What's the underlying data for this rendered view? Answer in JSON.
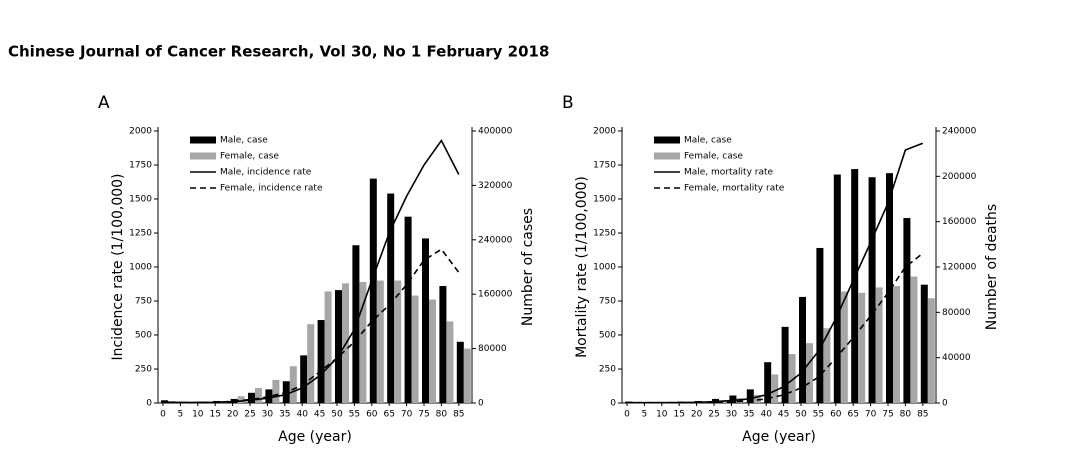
{
  "header": {
    "title": "Chinese Journal of Cancer Research, Vol 30, No 1 February 2018"
  },
  "chart_data": [
    {
      "type": "bar",
      "panel": "A",
      "xlabel": "Age (year)",
      "ylabel": "Incidence rate (1/100,000)",
      "y2label": "Number of cases",
      "categories": [
        "0",
        "5",
        "10",
        "15",
        "20",
        "25",
        "30",
        "35",
        "40",
        "45",
        "50",
        "55",
        "60",
        "65",
        "70",
        "75",
        "80",
        "85"
      ],
      "ylim": [
        0,
        2000
      ],
      "yticks": [
        0,
        250,
        500,
        750,
        1000,
        1250,
        1500,
        1750,
        2000
      ],
      "y2lim": [
        0,
        400000
      ],
      "y2ticks": [
        0,
        80000,
        160000,
        240000,
        320000,
        400000
      ],
      "series": [
        {
          "name": "Male, case",
          "type": "bar",
          "axis": "y2",
          "color": "#000000",
          "values": [
            4000,
            2000,
            2000,
            3000,
            6000,
            15000,
            20000,
            32000,
            70000,
            122000,
            166000,
            232000,
            330000,
            308000,
            274000,
            242000,
            172000,
            90000
          ]
        },
        {
          "name": "Female, case",
          "type": "bar",
          "axis": "y2",
          "color": "#a6a6a6",
          "values": [
            3000,
            2000,
            2000,
            3000,
            10000,
            22000,
            34000,
            54000,
            116000,
            164000,
            176000,
            178000,
            180000,
            180000,
            158000,
            152000,
            120000,
            80000
          ]
        },
        {
          "name": "Male, incidence rate",
          "type": "line",
          "dash": false,
          "color": "#000000",
          "values": [
            5,
            3,
            3,
            5,
            10,
            20,
            35,
            60,
            110,
            200,
            330,
            540,
            900,
            1250,
            1520,
            1750,
            1930,
            1680
          ]
        },
        {
          "name": "Female, incidence rate",
          "type": "line",
          "dash": true,
          "color": "#000000",
          "values": [
            5,
            3,
            3,
            5,
            12,
            25,
            45,
            75,
            130,
            230,
            330,
            450,
            600,
            720,
            870,
            1050,
            1130,
            960
          ]
        }
      ]
    },
    {
      "type": "bar",
      "panel": "B",
      "xlabel": "Age (year)",
      "ylabel": "Mortality rate (1/100,000)",
      "y2label": "Number of deaths",
      "categories": [
        "0",
        "5",
        "10",
        "15",
        "20",
        "25",
        "30",
        "35",
        "40",
        "45",
        "50",
        "55",
        "60",
        "65",
        "70",
        "75",
        "80",
        "85"
      ],
      "ylim": [
        0,
        2000
      ],
      "yticks": [
        0,
        250,
        500,
        750,
        1000,
        1250,
        1500,
        1750,
        2000
      ],
      "y2lim": [
        0,
        240000
      ],
      "y2ticks": [
        0,
        40000,
        80000,
        120000,
        160000,
        200000,
        240000
      ],
      "series": [
        {
          "name": "Male, case",
          "type": "bar",
          "axis": "y2",
          "color": "#000000",
          "values": [
            1200,
            600,
            600,
            1200,
            1800,
            3600,
            6600,
            12000,
            36000,
            67200,
            93600,
            136800,
            201600,
            206400,
            199200,
            202800,
            163200,
            104400
          ]
        },
        {
          "name": "Female, case",
          "type": "bar",
          "axis": "y2",
          "color": "#a6a6a6",
          "values": [
            600,
            600,
            600,
            600,
            1200,
            2400,
            4200,
            7200,
            25200,
            43200,
            52800,
            66000,
            98400,
            97200,
            102000,
            103200,
            111600,
            92400
          ]
        },
        {
          "name": "Male, mortality rate",
          "type": "line",
          "dash": false,
          "color": "#000000",
          "values": [
            3,
            2,
            2,
            3,
            5,
            10,
            18,
            30,
            60,
            120,
            220,
            380,
            620,
            900,
            1180,
            1470,
            1860,
            1910
          ]
        },
        {
          "name": "Female, mortality rate",
          "type": "line",
          "dash": true,
          "color": "#000000",
          "values": [
            2,
            2,
            2,
            2,
            3,
            5,
            8,
            15,
            30,
            60,
            110,
            190,
            330,
            480,
            640,
            810,
            1000,
            1100
          ]
        }
      ]
    }
  ]
}
